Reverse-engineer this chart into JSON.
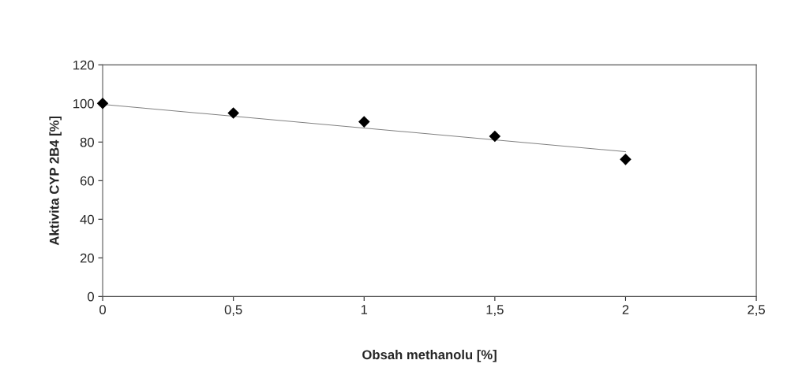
{
  "chart_data": {
    "type": "scatter",
    "xlabel": "Obsah methanolu [%]",
    "ylabel": "Aktivita CYP 2B4 [%]",
    "series": [
      {
        "color": "#000000",
        "marker": "diamond",
        "x": [
          0,
          0.5,
          1,
          1.5,
          2
        ],
        "values": [
          100,
          95,
          90.5,
          83,
          71
        ]
      },
      {
        "type": "line",
        "color": "#808080",
        "marker": "none",
        "x": [
          0,
          2
        ],
        "values": [
          99.5,
          75
        ]
      }
    ],
    "xlim": [
      0,
      2.5
    ],
    "xticks": [
      0,
      {
        "value": 0.5,
        "label": "0,5"
      },
      1,
      {
        "value": 1.5,
        "label": "1,5"
      },
      2,
      {
        "value": 2.5,
        "label": "2,5"
      }
    ],
    "ylim": [
      0,
      120
    ],
    "yticks": [
      0,
      20,
      40,
      60,
      80,
      100,
      120
    ],
    "grid": false,
    "legend": false
  }
}
